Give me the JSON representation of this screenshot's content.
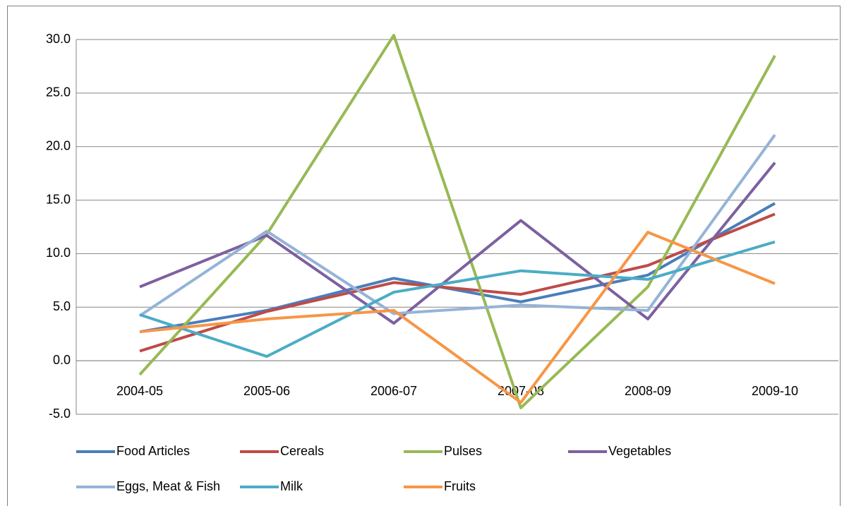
{
  "chart_data": {
    "type": "line",
    "categories": [
      "2004-05",
      "2005-06",
      "2006-07",
      "2007-08",
      "2008-09",
      "2009-10"
    ],
    "series": [
      {
        "name": "Food Articles",
        "color": "#4a7ebb",
        "values": [
          2.7,
          4.7,
          7.7,
          5.5,
          8.0,
          14.7
        ]
      },
      {
        "name": "Cereals",
        "color": "#be4b48",
        "values": [
          0.9,
          4.6,
          7.3,
          6.2,
          8.9,
          13.7
        ]
      },
      {
        "name": "Pulses",
        "color": "#98b954",
        "values": [
          -1.3,
          11.8,
          30.4,
          -4.4,
          6.9,
          28.5
        ]
      },
      {
        "name": "Vegetables",
        "color": "#7d60a0",
        "values": [
          6.9,
          11.7,
          3.5,
          13.1,
          3.9,
          18.5
        ]
      },
      {
        "name": "Eggs, Meat & Fish",
        "color": "#95b3d7",
        "values": [
          4.2,
          12.1,
          4.4,
          5.2,
          4.7,
          21.1
        ]
      },
      {
        "name": "Milk",
        "color": "#4bacc6",
        "values": [
          4.3,
          0.4,
          6.4,
          8.4,
          7.6,
          11.1
        ]
      },
      {
        "name": "Fruits",
        "color": "#f79646",
        "values": [
          2.7,
          3.9,
          4.7,
          -3.9,
          12.0,
          7.2
        ]
      }
    ],
    "ylim": [
      -5,
      30
    ],
    "yticks": [
      {
        "value": -5,
        "label": "-5.0"
      },
      {
        "value": 0,
        "label": "0.0"
      },
      {
        "value": 5,
        "label": "5.0"
      },
      {
        "value": 10,
        "label": "10.0"
      },
      {
        "value": 15,
        "label": "15.0"
      },
      {
        "value": 20,
        "label": "20.0"
      },
      {
        "value": 25,
        "label": "25.0"
      },
      {
        "value": 30,
        "label": "30.0"
      }
    ],
    "grid": true,
    "legend": "bottom"
  }
}
